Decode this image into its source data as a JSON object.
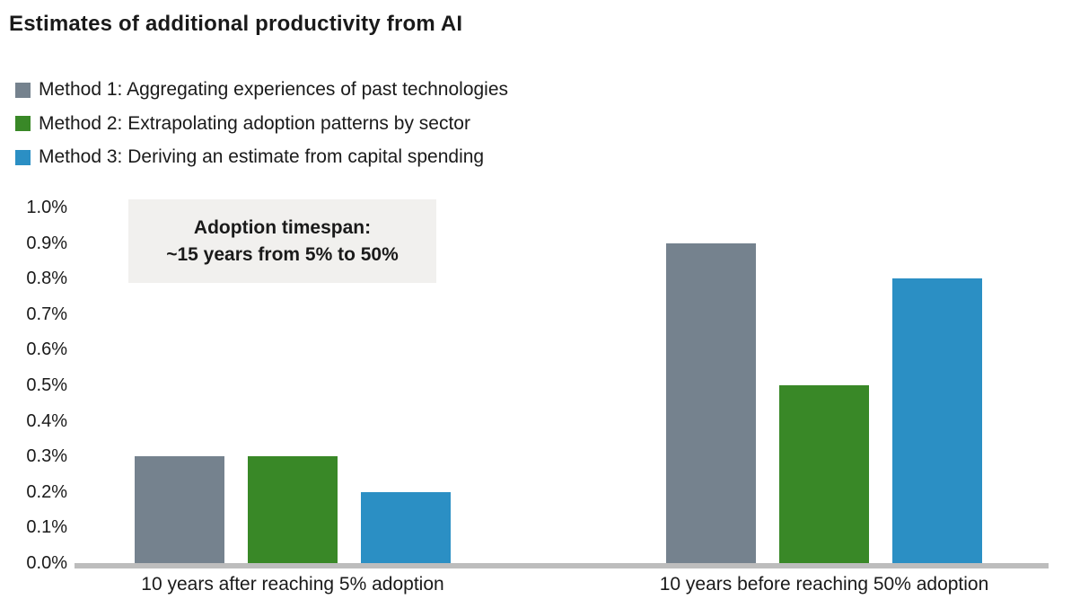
{
  "title": "Estimates of additional productivity from AI",
  "annotation": {
    "line1": "Adoption timespan:",
    "line2": "~15 years from 5% to 50%"
  },
  "colors": {
    "method1": "#75828E",
    "method2": "#398827",
    "method3": "#2B8FC4",
    "axis_line": "#BDBDBD",
    "annotation_bg": "#F1F0EE",
    "text": "#1A1A1A"
  },
  "chart_data": {
    "type": "bar",
    "title": "Estimates of additional productivity from AI",
    "categories": [
      "10 years after reaching 5% adoption",
      "10 years before reaching 50% adoption"
    ],
    "series": [
      {
        "name": "Method 1: Aggregating experiences of past technologies",
        "color": "#75828E",
        "values": [
          0.3,
          0.9
        ]
      },
      {
        "name": "Method 2: Extrapolating adoption patterns by sector",
        "color": "#398827",
        "values": [
          0.3,
          0.5
        ]
      },
      {
        "name": "Method 3: Deriving an estimate from capital spending",
        "color": "#2B8FC4",
        "values": [
          0.2,
          0.8
        ]
      }
    ],
    "xlabel": "",
    "ylabel": "",
    "yunit": "%",
    "ylim": [
      0,
      1.0
    ],
    "ytick_step": 0.1,
    "ytick_labels": [
      "0.0%",
      "0.1%",
      "0.2%",
      "0.3%",
      "0.4%",
      "0.5%",
      "0.6%",
      "0.7%",
      "0.8%",
      "0.9%",
      "1.0%"
    ],
    "grid": false,
    "legend_position": "top-left",
    "annotation": {
      "lines": [
        "Adoption timespan:",
        "~15 years from 5% to 50%"
      ]
    }
  }
}
